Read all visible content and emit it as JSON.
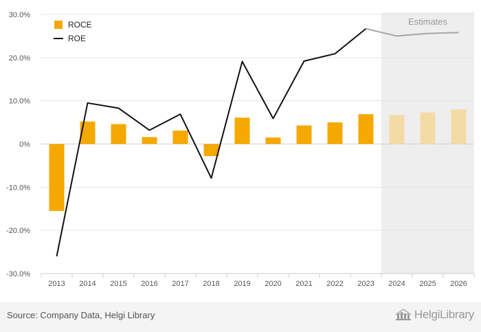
{
  "chart_data": {
    "type": "bar+line",
    "categories": [
      "2013",
      "2014",
      "2015",
      "2016",
      "2017",
      "2018",
      "2019",
      "2020",
      "2021",
      "2022",
      "2023",
      "2024",
      "2025",
      "2026"
    ],
    "series": [
      {
        "name": "ROCE",
        "kind": "bar",
        "values": [
          -15.5,
          5.2,
          4.6,
          1.6,
          3.1,
          -2.8,
          6.1,
          1.5,
          4.3,
          5.0,
          6.9,
          6.7,
          7.3,
          8.0
        ]
      },
      {
        "name": "ROE",
        "kind": "line",
        "values": [
          -26.0,
          9.5,
          8.3,
          3.2,
          6.9,
          -7.9,
          19.1,
          5.9,
          19.2,
          20.9,
          26.7,
          25.0,
          25.6,
          25.8
        ]
      }
    ],
    "estimates_from": "2024",
    "estimates_label": "Estimates",
    "ylim": [
      -30,
      30
    ],
    "yticks": [
      -30,
      -20,
      -10,
      0,
      10,
      20,
      30
    ],
    "ytick_labels": [
      "-30.0%",
      "-20.0%",
      "-10.0%",
      "0%",
      "10.0%",
      "20.0%",
      "30.0%"
    ],
    "legend": [
      {
        "name": "ROCE",
        "symbol": "square"
      },
      {
        "name": "ROE",
        "symbol": "line"
      }
    ],
    "legend_position": "top-left",
    "colors": {
      "bar": "#f5a800",
      "bar_estimate": "#f4dba6",
      "line": "#111111",
      "line_estimate": "#a6a6a6",
      "estimate_band": "#eeeeee",
      "grid": "#e5e5e5",
      "axis_text": "#555555"
    }
  },
  "footer": {
    "source": "Source: Company Data, Helgi Library",
    "brand": "HelgiLibrary"
  }
}
